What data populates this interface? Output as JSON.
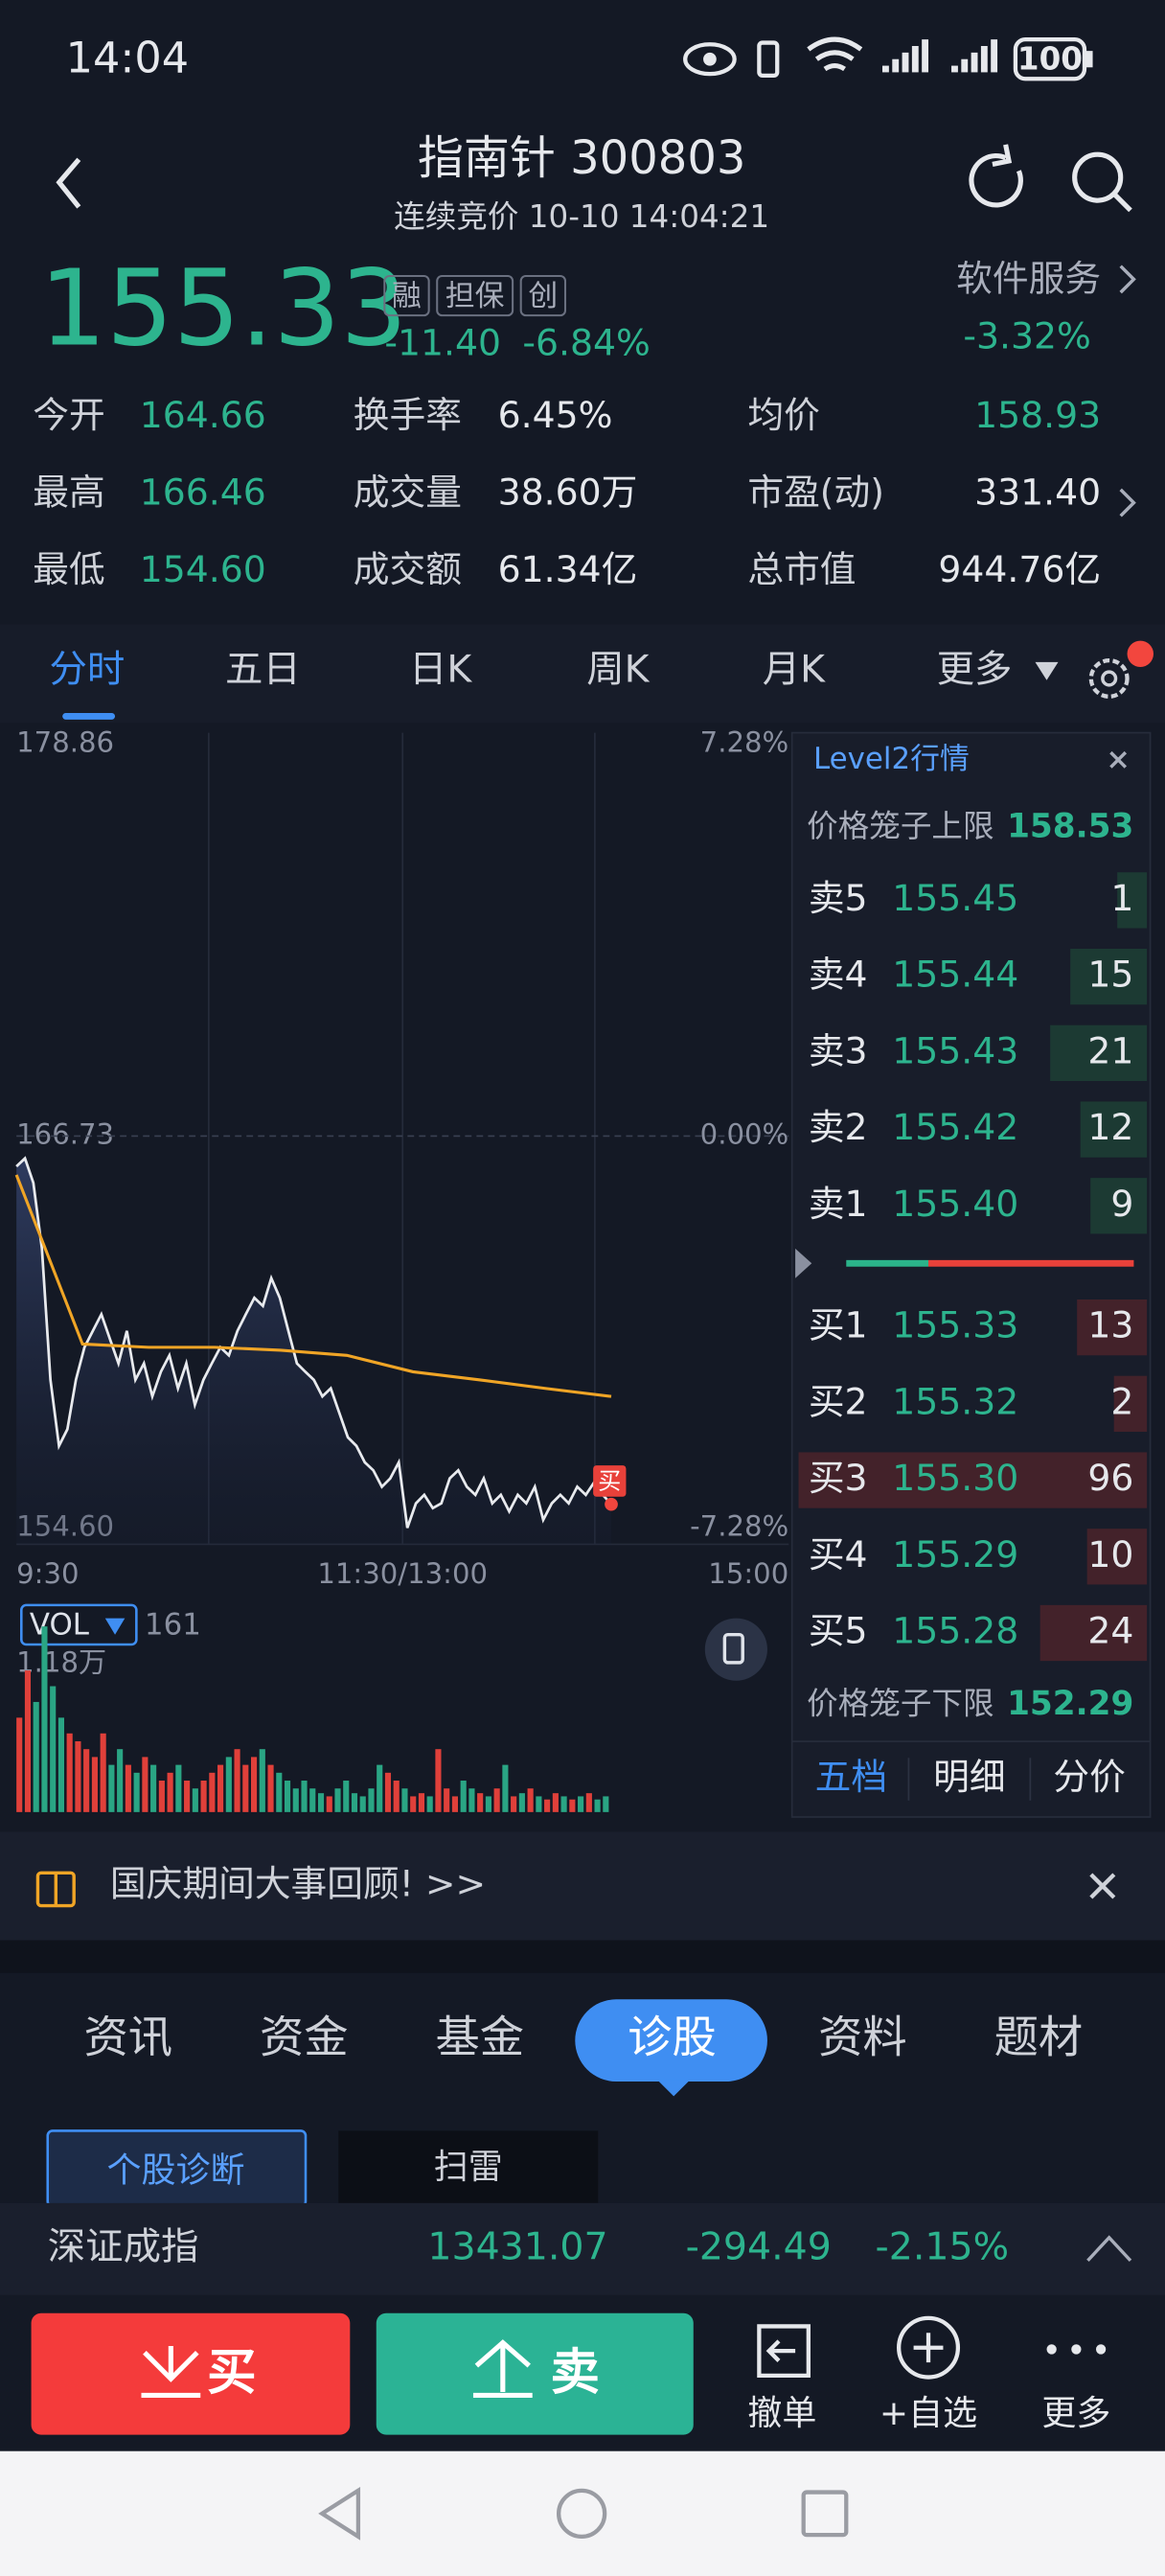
{
  "status": {
    "time": "14:04",
    "battery": "100"
  },
  "header": {
    "title": "指南针 300803",
    "subtitle": "连续竞价 10-10 14:04:21"
  },
  "quote": {
    "price": "155.33",
    "tags": [
      "融",
      "担保",
      "创"
    ],
    "change": "-11.40",
    "change_pct": "-6.84%",
    "sector": "软件服务",
    "sector_pct": "-3.32%"
  },
  "stats": [
    [
      {
        "label": "今开",
        "value": "164.66"
      },
      {
        "label": "换手率",
        "value": "6.45%"
      },
      {
        "label": "均价",
        "value": "158.93"
      }
    ],
    [
      {
        "label": "最高",
        "value": "166.46"
      },
      {
        "label": "成交量",
        "value": "38.60万"
      },
      {
        "label": "市盈(动)",
        "value": "331.40"
      }
    ],
    [
      {
        "label": "最低",
        "value": "154.60"
      },
      {
        "label": "成交额",
        "value": "61.34亿"
      },
      {
        "label": "总市值",
        "value": "944.76亿"
      }
    ]
  ],
  "tabs": [
    "分时",
    "五日",
    "日K",
    "周K",
    "月K",
    "更多"
  ],
  "chart_data": {
    "type": "line",
    "ylim": [
      154.6,
      178.86
    ],
    "yticks": [
      178.86,
      166.73,
      {
        "value": 154.6,
        "label": "154.60"
      }
    ],
    "y2lim": [
      -7.28,
      7.28
    ],
    "y2ticks": [
      {
        "value": 7.28,
        "label": "7.28%"
      },
      {
        "value": 0,
        "label": "0.00%"
      },
      {
        "value": -7.28,
        "label": "-7.28%"
      }
    ],
    "x_labels": [
      "9:30",
      "11:30/13:00",
      "15:00"
    ],
    "price_color": "#e8eaee",
    "average_color": "#f0a526",
    "price": [
      165.79,
      166.04,
      165.28,
      163.25,
      159.18,
      157.14,
      157.65,
      159.18,
      160.19,
      160.7,
      161.21,
      160.45,
      159.69,
      160.7,
      159.18,
      159.69,
      158.67,
      159.43,
      159.94,
      158.92,
      159.69,
      158.41,
      159.18,
      159.69,
      160.19,
      159.94,
      160.7,
      161.21,
      161.72,
      161.47,
      162.33,
      161.72,
      160.7,
      159.69,
      159.43,
      159.18,
      158.67,
      158.92,
      158.16,
      157.4,
      157.14,
      156.63,
      156.38,
      155.87,
      156.13,
      156.63,
      154.6,
      155.36,
      155.62,
      155.21,
      155.36,
      156.13,
      156.38,
      155.87,
      155.62,
      156.13,
      155.36,
      155.62,
      155.11,
      155.62,
      155.36,
      155.87,
      154.85,
      155.36,
      155.62,
      155.36,
      155.87,
      155.62,
      156.02,
      155.62,
      155.33
    ],
    "average": [
      165.53,
      160.29,
      160.19,
      160.19,
      160.1,
      159.94,
      159.43,
      159.18,
      158.92,
      158.67
    ],
    "marker": "买",
    "volume": {
      "label": "VOL",
      "latest": "161",
      "ylim": [
        0,
        {
          "value": 1.18,
          "label": "1.18万"
        }
      ],
      "values": [
        0.6,
        0.9,
        0.7,
        1.18,
        0.8,
        0.6,
        0.5,
        0.45,
        0.4,
        0.35,
        0.5,
        0.3,
        0.4,
        0.3,
        0.25,
        0.35,
        0.3,
        0.2,
        0.25,
        0.3,
        0.2,
        0.15,
        0.2,
        0.25,
        0.3,
        0.35,
        0.4,
        0.3,
        0.35,
        0.4,
        0.3,
        0.25,
        0.2,
        0.15,
        0.2,
        0.15,
        0.12,
        0.1,
        0.15,
        0.2,
        0.12,
        0.1,
        0.15,
        0.3,
        0.25,
        0.2,
        0.15,
        0.1,
        0.12,
        0.1,
        0.4,
        0.15,
        0.1,
        0.2,
        0.15,
        0.12,
        0.1,
        0.15,
        0.3,
        0.1,
        0.12,
        0.15,
        0.1,
        0.08,
        0.12,
        0.1,
        0.08,
        0.1,
        0.12,
        0.08,
        0.1
      ]
    }
  },
  "level2": {
    "title": "Level2行情",
    "upper_label": "价格笼子上限",
    "upper": "158.53",
    "asks": [
      {
        "label": "卖5",
        "price": "155.45",
        "qty": 1
      },
      {
        "label": "卖4",
        "price": "155.44",
        "qty": 15
      },
      {
        "label": "卖3",
        "price": "155.43",
        "qty": 21
      },
      {
        "label": "卖2",
        "price": "155.42",
        "qty": 12
      },
      {
        "label": "卖1",
        "price": "155.40",
        "qty": 9
      }
    ],
    "bids": [
      {
        "label": "买1",
        "price": "155.33",
        "qty": 13
      },
      {
        "label": "买2",
        "price": "155.32",
        "qty": 2
      },
      {
        "label": "买3",
        "price": "155.30",
        "qty": 96
      },
      {
        "label": "买4",
        "price": "155.29",
        "qty": 10
      },
      {
        "label": "买5",
        "price": "155.28",
        "qty": 24
      }
    ],
    "lower_label": "价格笼子下限",
    "lower": "152.29",
    "tabs": [
      "五档",
      "明细",
      "分价"
    ]
  },
  "banner": "国庆期间大事回顾! >>",
  "section_tabs": [
    "资讯",
    "资金",
    "基金",
    "诊股",
    "资料",
    "题材"
  ],
  "sub_tabs": [
    "个股诊断",
    "扫雷"
  ],
  "index": {
    "name": "深证成指",
    "value": "13431.07",
    "change": "-294.49",
    "pct": "-2.15%"
  },
  "actions": {
    "buy": "买",
    "sell": "卖",
    "tools": [
      "撤单",
      "+自选",
      "更多"
    ]
  }
}
